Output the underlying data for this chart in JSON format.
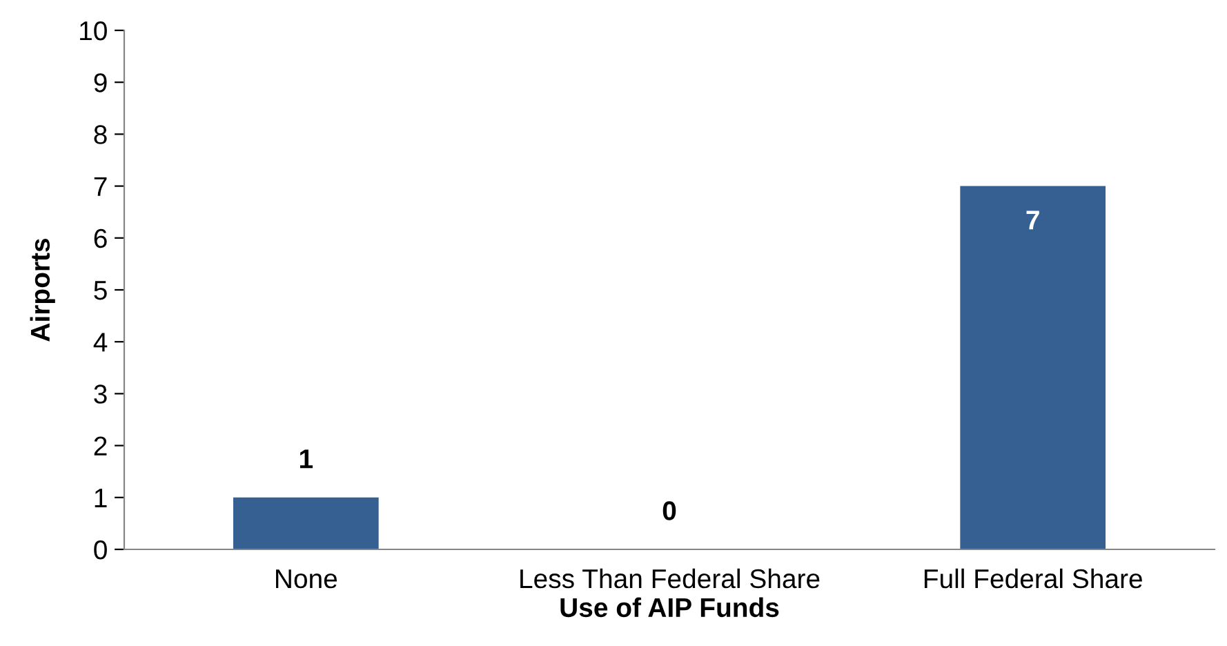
{
  "chart_data": {
    "type": "bar",
    "xlabel": "Use of AIP Funds",
    "ylabel": "Airports",
    "categories": [
      "None",
      "Less Than Federal Share",
      "Full Federal Share"
    ],
    "values": [
      1,
      0,
      7
    ],
    "color": "#376092",
    "ylim": [
      0,
      10
    ],
    "yticks": [
      0,
      1,
      2,
      3,
      4,
      5,
      6,
      7,
      8,
      9,
      10
    ],
    "grid": false,
    "data_labels": true
  }
}
